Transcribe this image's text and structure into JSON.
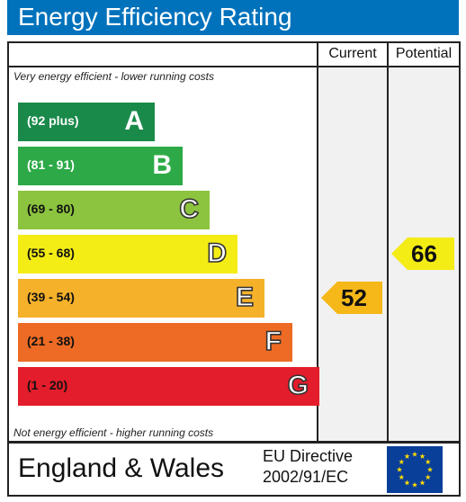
{
  "title": "Energy Efficiency Rating",
  "columns": {
    "current": "Current",
    "potential": "Potential"
  },
  "notes": {
    "top": "Very energy efficient - lower running costs",
    "bottom": "Not energy efficient - higher running costs"
  },
  "bands": [
    {
      "range": "(92 plus)",
      "letter": "A",
      "color": "#1a8a4a",
      "text_color": "#ffffff"
    },
    {
      "range": "(81 - 91)",
      "letter": "B",
      "color": "#2daa47",
      "text_color": "#ffffff"
    },
    {
      "range": "(69 - 80)",
      "letter": "C",
      "color": "#8cc43f",
      "text_color": "#111111"
    },
    {
      "range": "(55 - 68)",
      "letter": "D",
      "color": "#f4ec15",
      "text_color": "#111111"
    },
    {
      "range": "(39 - 54)",
      "letter": "E",
      "color": "#f5b12a",
      "text_color": "#111111"
    },
    {
      "range": "(21 - 38)",
      "letter": "F",
      "color": "#ed6b24",
      "text_color": "#111111"
    },
    {
      "range": "(1 - 20)",
      "letter": "G",
      "color": "#e31d2b",
      "text_color": "#111111"
    }
  ],
  "ratings": {
    "current": {
      "value": "52",
      "band": "E",
      "color": "#f5b818"
    },
    "potential": {
      "value": "66",
      "band": "D",
      "color": "#f4ec15"
    }
  },
  "footer": {
    "region": "England & Wales",
    "directive_line1": "EU Directive",
    "directive_line2": "2002/91/EC",
    "flag_icon": "eu-flag-icon"
  }
}
